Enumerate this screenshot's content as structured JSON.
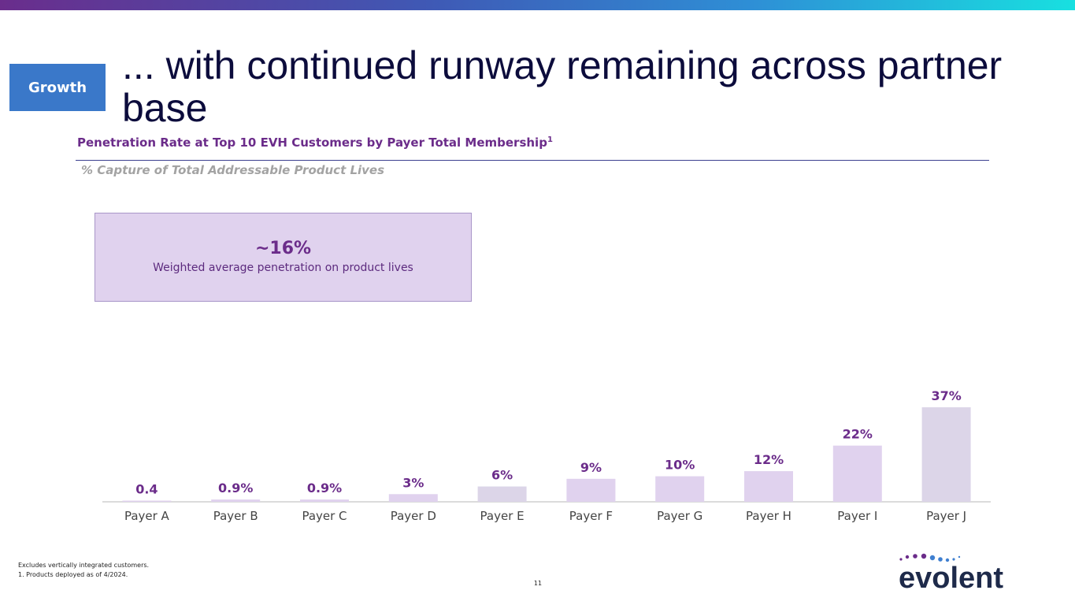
{
  "badge": "Growth",
  "title": "... with continued runway remaining across partner base",
  "subtitle": "Penetration Rate at Top 10 EVH Customers by Payer Total Membership",
  "subtitle_sup": "1",
  "caption": "% Capture of Total Addressable Product Lives",
  "callout": {
    "value": "~16%",
    "description": "Weighted average penetration on product lives"
  },
  "chart_data": {
    "type": "bar",
    "title": "Penetration Rate at Top 10 EVH Customers by Payer Total Membership",
    "ylabel": "% Capture of Total Addressable Product Lives",
    "xlabel": "",
    "categories": [
      "Payer A",
      "Payer B",
      "Payer C",
      "Payer D",
      "Payer E",
      "Payer F",
      "Payer G",
      "Payer H",
      "Payer I",
      "Payer J"
    ],
    "values": [
      0.4,
      0.9,
      0.9,
      3,
      6,
      9,
      10,
      12,
      22,
      37
    ],
    "value_labels": [
      "0.4",
      "0.9%",
      "0.9%",
      "3%",
      "6%",
      "9%",
      "10%",
      "12%",
      "22%",
      "37%"
    ],
    "ylim": [
      0,
      40
    ],
    "grid": false,
    "colors": {
      "bar": "#e0d2ee",
      "bar_alt": "#dcd5e8",
      "label": "#6b2c8a",
      "axis": "#b7b7b7",
      "category": "#444444"
    }
  },
  "footnotes": [
    "Excludes vertically integrated customers.",
    "1. Products deployed as of 4/2024."
  ],
  "page_number": "11",
  "logo": {
    "text": "evolent",
    "color": "#1e2a4a",
    "dot_color": "#6b2c8a"
  }
}
